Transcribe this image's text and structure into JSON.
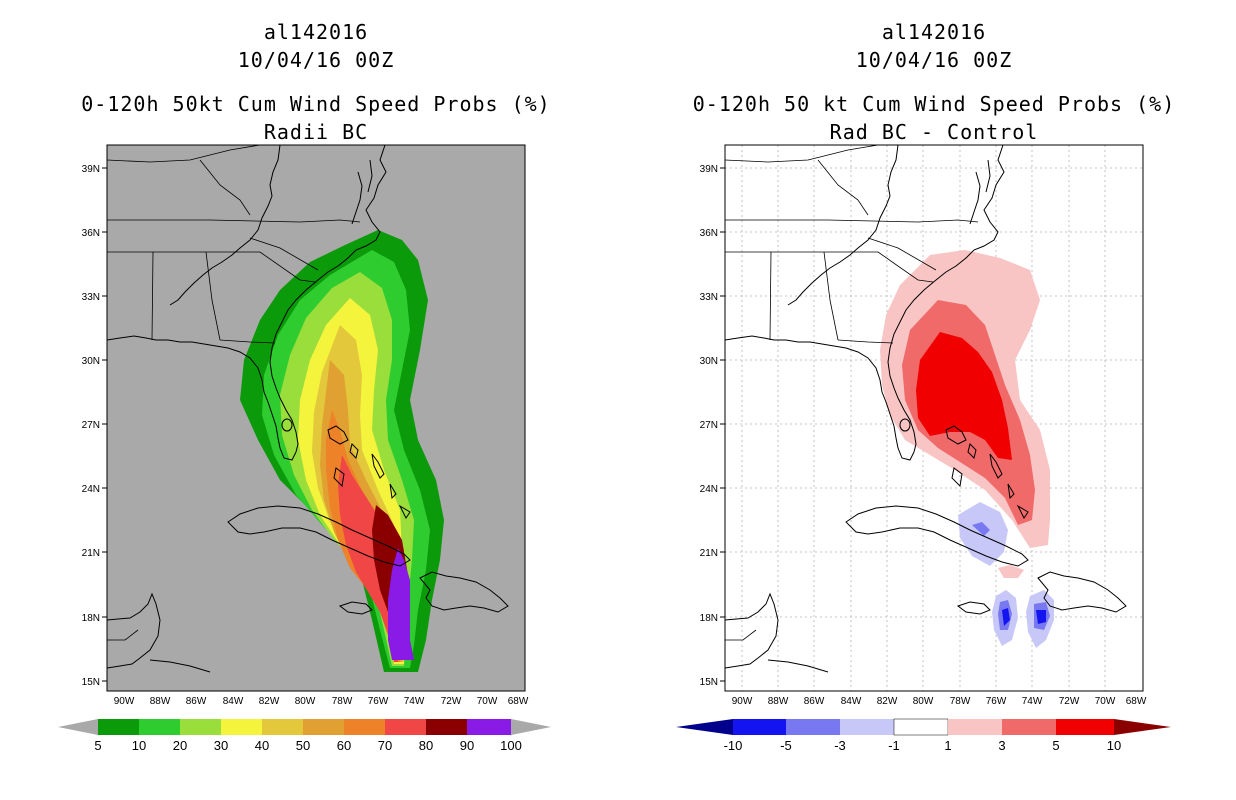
{
  "left": {
    "storm_id": "al142016",
    "datetime": "10/04/16 00Z",
    "title": "0-120h 50kt Cum Wind Speed Probs (%)",
    "subtitle": "Radii BC",
    "background": "#a9a9a9",
    "lat_labels": [
      "39N",
      "36N",
      "33N",
      "30N",
      "27N",
      "24N",
      "21N",
      "18N",
      "15N"
    ],
    "lon_labels": [
      "90W",
      "88W",
      "86W",
      "84W",
      "82W",
      "80W",
      "78W",
      "76W",
      "74W",
      "72W",
      "70W",
      "68W"
    ],
    "levels": [
      "5",
      "10",
      "20",
      "30",
      "40",
      "50",
      "60",
      "70",
      "80",
      "90",
      "100"
    ],
    "colors": [
      "#0a9a0a",
      "#2fcc2f",
      "#9ade3c",
      "#f4f43c",
      "#e2c83a",
      "#e0a032",
      "#ee8228",
      "#f04646",
      "#8a0000",
      "#8a1ae6"
    ]
  },
  "right": {
    "storm_id": "al142016",
    "datetime": "10/04/16 00Z",
    "title": "0-120h 50 kt Cum Wind Speed Probs (%)",
    "subtitle": "Rad BC - Control",
    "background": "#ffffff",
    "lat_labels": [
      "39N",
      "36N",
      "33N",
      "30N",
      "27N",
      "24N",
      "21N",
      "18N",
      "15N"
    ],
    "lon_labels": [
      "90W",
      "88W",
      "86W",
      "84W",
      "82W",
      "80W",
      "78W",
      "76W",
      "74W",
      "72W",
      "70W",
      "68W"
    ],
    "levels": [
      "-10",
      "-5",
      "-3",
      "-1",
      "1",
      "3",
      "5",
      "10"
    ],
    "colors": [
      "#00008c",
      "#1414f0",
      "#7878f0",
      "#c8c8f8",
      "#ffffff",
      "#f8c4c4",
      "#f06a6a",
      "#f00000",
      "#8a0000"
    ]
  }
}
